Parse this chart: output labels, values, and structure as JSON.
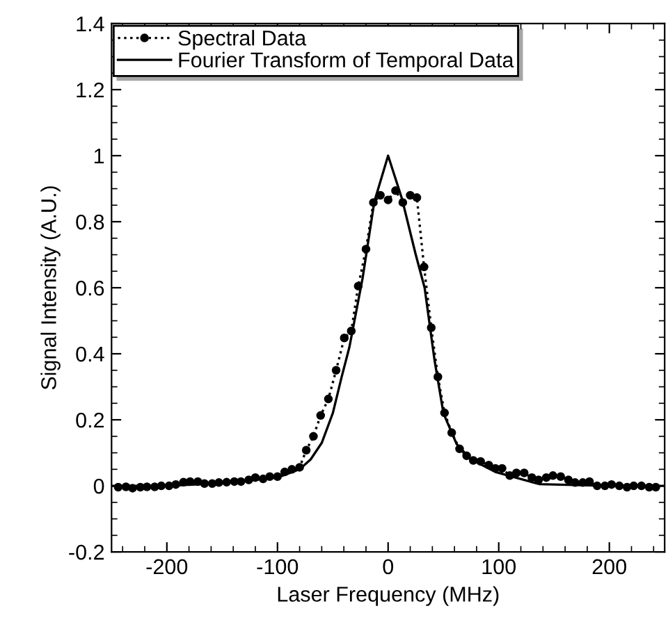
{
  "chart_data": {
    "type": "line",
    "xlabel": "Laser Frequency (MHz)",
    "ylabel": "Signal Intensity (A.U.)",
    "xlim": [
      -250,
      250
    ],
    "ylim": [
      -0.2,
      1.4
    ],
    "xticks": [
      -200,
      -100,
      0,
      100,
      200
    ],
    "yticks": [
      -0.2,
      0,
      0.2,
      0.4,
      0.6,
      0.8,
      1,
      1.2,
      1.4
    ],
    "grid": false,
    "legend": "top left",
    "series": [
      {
        "name": "Spectral Data",
        "color": "#000000",
        "marker": "circle",
        "line_style": "dotted",
        "x": [
          -244,
          -237,
          -231,
          -224,
          -218,
          -211,
          -205,
          -198,
          -192,
          -185,
          -179,
          -172,
          -166,
          -159,
          -153,
          -146,
          -139,
          -133,
          -126,
          -120,
          -113,
          -107,
          -100,
          -93.5,
          -87,
          -80,
          -74,
          -67.5,
          -61,
          -54,
          -47,
          -39.6,
          -33.3,
          -27,
          -20,
          -13.3,
          -7,
          0,
          6.7,
          13.3,
          20,
          26,
          32.5,
          39,
          45,
          51,
          57.5,
          64.6,
          71,
          77,
          83.6,
          91,
          97,
          103,
          110,
          116,
          123,
          130,
          136,
          143,
          149,
          156,
          163,
          169,
          176,
          182,
          189,
          196,
          202,
          209,
          216,
          222,
          229,
          236,
          242
        ],
        "values": [
          -0.004,
          -0.003,
          -0.007,
          -0.004,
          -0.003,
          -0.003,
          0,
          0,
          0.004,
          0.011,
          0.013,
          0.013,
          0.007,
          0.007,
          0.01,
          0.011,
          0.013,
          0.013,
          0.018,
          0.025,
          0.021,
          0.028,
          0.028,
          0.042,
          0.05,
          0.056,
          0.108,
          0.15,
          0.213,
          0.263,
          0.35,
          0.448,
          0.469,
          0.605,
          0.717,
          0.858,
          0.88,
          0.866,
          0.894,
          0.858,
          0.88,
          0.873,
          0.663,
          0.479,
          0.33,
          0.221,
          0.161,
          0.112,
          0.091,
          0.077,
          0.074,
          0.063,
          0.053,
          0.053,
          0.031,
          0.039,
          0.039,
          0.025,
          0.018,
          0.025,
          0.031,
          0.028,
          0.018,
          0.01,
          0.01,
          0.013,
          0,
          0,
          0.004,
          0,
          -0.004,
          0,
          0,
          -0.004,
          -0.004
        ]
      },
      {
        "name": "Fourier Transform of Temporal Data",
        "color": "#000000",
        "marker": "none",
        "line_style": "solid",
        "x": [
          -250,
          -200,
          -150,
          -100,
          -80,
          -70,
          -60,
          -50,
          -42,
          -35,
          -23,
          -12.5,
          0,
          12.5,
          25,
          33,
          42,
          50,
          62,
          75,
          97,
          137,
          200,
          250
        ],
        "values": [
          0,
          0,
          0.008,
          0.025,
          0.05,
          0.08,
          0.13,
          0.22,
          0.33,
          0.42,
          0.63,
          0.86,
          1.0,
          0.87,
          0.7,
          0.6,
          0.38,
          0.22,
          0.126,
          0.08,
          0.042,
          0.005,
          0,
          0
        ]
      }
    ]
  }
}
